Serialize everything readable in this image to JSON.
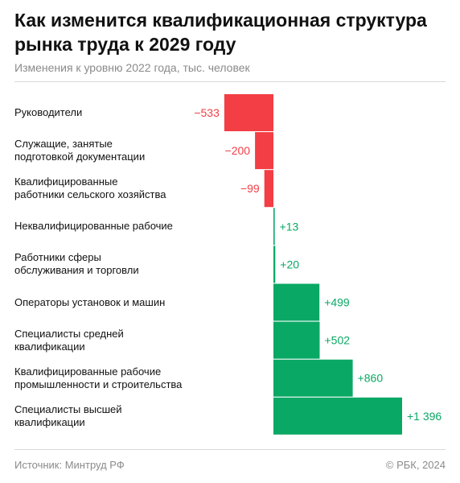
{
  "title": "Как изменится квалификационная структура рынка труда к 2029 году",
  "subtitle": "Изменения к уровню 2022 года, тыс. человек",
  "footer": {
    "source": "Источник: Минтруд РФ",
    "copyright": "© РБК, 2024"
  },
  "colors": {
    "negative": "#f23e44",
    "positive": "#0aa865"
  },
  "chart_data": {
    "type": "bar",
    "orientation": "horizontal",
    "categories": [
      "Руководители",
      "Служащие, занятые подготовкой документации",
      "Квалифицированные работники сельского хозяйства",
      "Неквалифицированные рабочие",
      "Работники сферы обслуживания и торговли",
      "Операторы установок и машин",
      "Специалисты средней квалификации",
      "Квалифицированные рабочие промышленности и строительства",
      "Специалисты высшей квалификации"
    ],
    "category_lines": [
      [
        "Руководители"
      ],
      [
        "Служащие, занятые",
        "подготовкой документации"
      ],
      [
        "Квалифицированные",
        "работники сельского хозяйства"
      ],
      [
        "Неквалифицированные рабочие"
      ],
      [
        "Работники сферы",
        "обслуживания и торговли"
      ],
      [
        "Операторы установок и машин"
      ],
      [
        "Специалисты средней",
        "квалификации"
      ],
      [
        "Квалифицированные рабочие",
        "промышленности и строительства"
      ],
      [
        "Специалисты высшей",
        "квалификации"
      ]
    ],
    "values": [
      -533,
      -200,
      -99,
      13,
      20,
      499,
      502,
      860,
      1396
    ],
    "data_labels": [
      "−533",
      "−200",
      "−99",
      "+13",
      "+20",
      "+499",
      "+502",
      "+860",
      "+1 396"
    ],
    "xlim": [
      -533,
      1396
    ]
  }
}
